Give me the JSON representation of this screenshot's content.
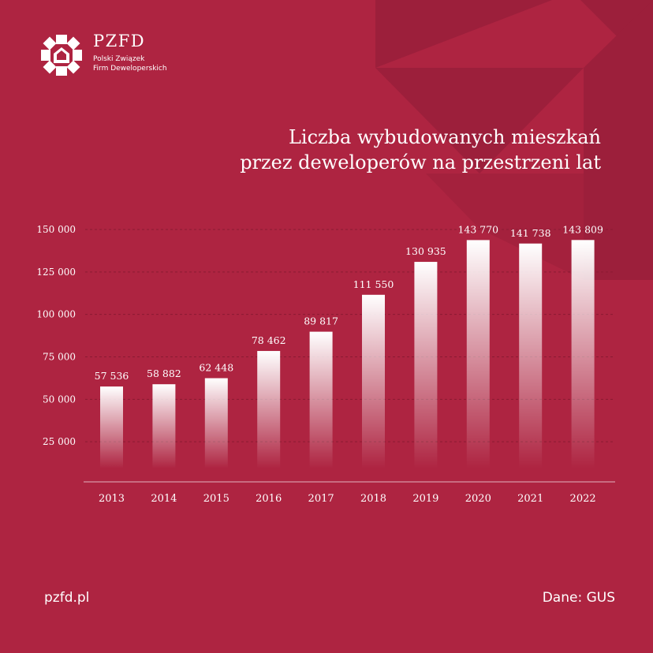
{
  "brand": {
    "name": "PZFD",
    "subtitle_line1": "Polski Związek",
    "subtitle_line2": "Firm Deweloperskich",
    "logo_icon": "pzfd-house-star-logo-icon"
  },
  "title_line1": "Liczba wybudowanych mieszkań",
  "title_line2": "przez deweloperów na przestrzeni lat",
  "footer": {
    "website": "pzfd.pl",
    "source": "Dane: GUS"
  },
  "colors": {
    "background": "#ae2441",
    "decoration": "#9c1f3b",
    "bar": "#ffffff",
    "text": "#ffffff"
  },
  "chart_data": {
    "type": "bar",
    "categories": [
      "2013",
      "2014",
      "2015",
      "2016",
      "2017",
      "2018",
      "2019",
      "2020",
      "2021",
      "2022"
    ],
    "values": [
      57536,
      58882,
      62448,
      78462,
      89817,
      111550,
      130935,
      143770,
      141738,
      143809
    ],
    "value_labels": [
      "57 536",
      "58 882",
      "62 448",
      "78 462",
      "89 817",
      "111 550",
      "130 935",
      "143 770",
      "141 738",
      "143 809"
    ],
    "yticks": [
      25000,
      50000,
      75000,
      100000,
      125000,
      150000
    ],
    "ytick_labels": [
      "25 000",
      "50 000",
      "75 000",
      "100 000",
      "125 000",
      "150 000"
    ],
    "ylim": [
      0,
      150000
    ],
    "grid": true,
    "legend": "none"
  }
}
